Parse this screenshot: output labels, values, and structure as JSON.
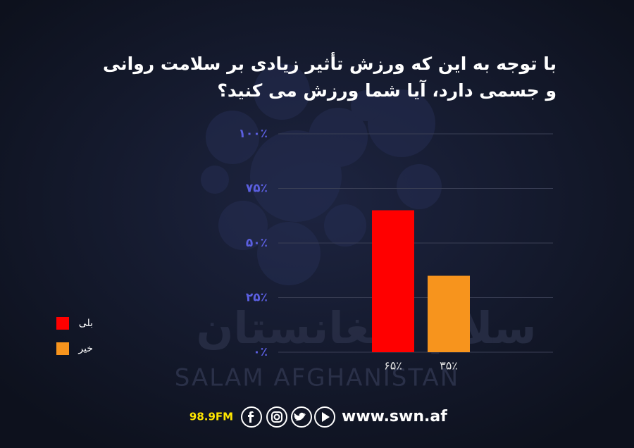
{
  "chart_data": {
    "type": "bar",
    "title": [
      "با توجه به این که ورزش تأثیر زیادی بر سلامت روانی",
      "و جسمی دارد، آیا شما ورزش می کنید؟"
    ],
    "categories": [
      "بلی",
      "خیر"
    ],
    "values": [
      65,
      35
    ],
    "value_labels": [
      "۶۵٪",
      "۳۵٪"
    ],
    "colors": [
      "#ff0000",
      "#f7941d"
    ],
    "ylim": [
      0,
      100
    ],
    "yticks": [
      {
        "value": 0,
        "label": "۰٪"
      },
      {
        "value": 25,
        "label": "۲۵٪"
      },
      {
        "value": 50,
        "label": "۵۰٪"
      },
      {
        "value": 75,
        "label": "۷۵٪"
      },
      {
        "value": 100,
        "label": "۱۰۰٪"
      }
    ],
    "grid": true,
    "legend": "left"
  },
  "watermark": {
    "persian": "سلام افغانستان",
    "latin": "SALAM AFGHANISTAN"
  },
  "footer": {
    "frequency": "98.9FM",
    "website": "www.swn.af"
  }
}
